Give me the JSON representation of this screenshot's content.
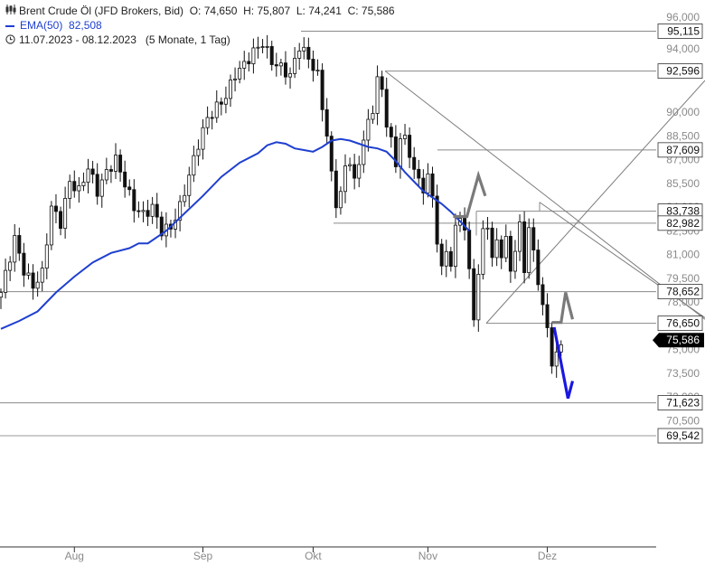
{
  "header": {
    "instrument": "Brent Crude Öl (JFD Brokers, Bid)",
    "ohlc": {
      "o_label": "O:",
      "o": "74,650",
      "h_label": "H:",
      "h": "75,807",
      "l_label": "L:",
      "l": "74,241",
      "c_label": "C:",
      "c": "75,586"
    },
    "ema_label": "EMA(50)",
    "ema_value": "82,508",
    "range": "11.07.2023 - 08.12.2023",
    "interval": "(5 Monate, 1 Tag)"
  },
  "colors": {
    "ema": "#1f3fcf",
    "candle": "#111111",
    "grid": "#bdbdbd",
    "projection_up": "#7a7a7a",
    "projection_down": "#1a18e0",
    "last_price_bg": "#000000"
  },
  "chart_data": {
    "type": "candlestick",
    "y_axis": {
      "ylim": [
        69.0,
        96.5
      ],
      "ticks": [
        "96,000",
        "94,000",
        "92,500",
        "90,000",
        "88,500",
        "87,000",
        "85,500",
        "84,000",
        "82,500",
        "81,000",
        "79,500",
        "78,000",
        "76,500",
        "75,000",
        "73,500",
        "72,000",
        "70,500"
      ],
      "tick_values": [
        96,
        94,
        92.5,
        90,
        88.5,
        87,
        85.5,
        84,
        82.5,
        81,
        79.5,
        78,
        76.5,
        75,
        73.5,
        72,
        70.5
      ]
    },
    "x_axis": {
      "labels": [
        "Aug",
        "Sep",
        "Okt",
        "Nov",
        "Dez"
      ],
      "label_bar_index": [
        16,
        44,
        68,
        93,
        119
      ]
    },
    "levels": [
      {
        "value": 95.115,
        "label": "95,115"
      },
      {
        "value": 92.596,
        "label": "92,596"
      },
      {
        "value": 87.609,
        "label": "87,609"
      },
      {
        "value": 83.738,
        "label": "83,738"
      },
      {
        "value": 82.982,
        "label": "82,982"
      },
      {
        "value": 78.652,
        "label": "78,652"
      },
      {
        "value": 76.65,
        "label": "76,650"
      },
      {
        "value": 71.623,
        "label": "71,623"
      },
      {
        "value": 69.542,
        "label": "69,542"
      }
    ],
    "last_price": {
      "value": 75.586,
      "label": "75,586"
    },
    "close_path": [
      [
        0,
        78.6
      ],
      [
        3,
        82
      ],
      [
        5,
        80
      ],
      [
        7,
        79
      ],
      [
        9,
        79.8
      ],
      [
        11,
        84
      ],
      [
        13,
        83
      ],
      [
        15,
        85.6
      ],
      [
        17,
        85
      ],
      [
        19,
        86.5
      ],
      [
        21,
        85
      ],
      [
        23,
        86.2
      ],
      [
        25,
        87
      ],
      [
        27,
        85.5
      ],
      [
        29,
        84
      ],
      [
        31,
        83.5
      ],
      [
        33,
        84
      ],
      [
        35,
        82.5
      ],
      [
        37,
        82.7
      ],
      [
        39,
        84
      ],
      [
        41,
        86
      ],
      [
        43,
        88
      ],
      [
        45,
        89.6
      ],
      [
        47,
        90.3
      ],
      [
        49,
        91
      ],
      [
        51,
        92.4
      ],
      [
        53,
        93
      ],
      [
        55,
        93.8
      ],
      [
        57,
        94.4
      ],
      [
        59,
        93.2
      ],
      [
        61,
        92.8
      ],
      [
        63,
        92.3
      ],
      [
        65,
        94.2
      ],
      [
        67,
        93.4
      ],
      [
        69,
        92.3
      ],
      [
        71,
        88.5
      ],
      [
        72,
        86
      ],
      [
        73,
        84.3
      ],
      [
        74,
        84.8
      ],
      [
        75,
        86.5
      ],
      [
        76,
        87
      ],
      [
        77,
        85.5
      ],
      [
        78,
        86.8
      ],
      [
        79,
        88.4
      ],
      [
        80,
        89.2
      ],
      [
        81,
        90.2
      ],
      [
        82,
        92.2
      ],
      [
        83,
        91.2
      ],
      [
        84,
        89.4
      ],
      [
        85,
        88.2
      ],
      [
        86,
        86.5
      ],
      [
        87,
        88.6
      ],
      [
        88,
        88.2
      ],
      [
        89,
        87.3
      ],
      [
        90,
        86.5
      ],
      [
        91,
        85.5
      ],
      [
        92,
        85.2
      ],
      [
        93,
        86
      ],
      [
        94,
        84.5
      ],
      [
        95,
        82
      ],
      [
        96,
        80
      ],
      [
        97,
        81.2
      ],
      [
        98,
        80.5
      ],
      [
        99,
        82.5
      ],
      [
        100,
        83.5
      ],
      [
        101,
        82.6
      ],
      [
        102,
        79.8
      ],
      [
        103,
        77.2
      ],
      [
        104,
        79.6
      ],
      [
        105,
        82.5
      ],
      [
        106,
        83
      ],
      [
        107,
        80.5
      ],
      [
        108,
        82
      ],
      [
        109,
        81
      ],
      [
        110,
        81.8
      ],
      [
        111,
        80.2
      ],
      [
        112,
        81.2
      ],
      [
        113,
        82.8
      ],
      [
        114,
        80.2
      ],
      [
        115,
        82.5
      ],
      [
        116,
        81.2
      ],
      [
        117,
        79.4
      ],
      [
        118,
        77.5
      ],
      [
        119,
        76.5
      ],
      [
        120,
        74.1
      ],
      [
        121,
        74.5
      ],
      [
        122,
        75.59
      ]
    ],
    "ema_path": [
      [
        0,
        76.3
      ],
      [
        4,
        76.8
      ],
      [
        8,
        77.4
      ],
      [
        12,
        78.6
      ],
      [
        16,
        79.6
      ],
      [
        20,
        80.5
      ],
      [
        24,
        81.1
      ],
      [
        28,
        81.4
      ],
      [
        30,
        81.7
      ],
      [
        32,
        81.7
      ],
      [
        36,
        82.5
      ],
      [
        40,
        83.6
      ],
      [
        44,
        84.7
      ],
      [
        48,
        85.9
      ],
      [
        52,
        86.8
      ],
      [
        56,
        87.4
      ],
      [
        58,
        87.9
      ],
      [
        60,
        88.1
      ],
      [
        62,
        88
      ],
      [
        64,
        87.7
      ],
      [
        66,
        87.6
      ],
      [
        68,
        87.5
      ],
      [
        70,
        87.8
      ],
      [
        72,
        88.2
      ],
      [
        74,
        88.3
      ],
      [
        76,
        88.2
      ],
      [
        78,
        88
      ],
      [
        80,
        87.8
      ],
      [
        82,
        87.7
      ],
      [
        84,
        87.5
      ],
      [
        86,
        86.9
      ],
      [
        88,
        86.2
      ],
      [
        90,
        85.6
      ],
      [
        92,
        85
      ],
      [
        94,
        84.6
      ],
      [
        96,
        84.2
      ],
      [
        98,
        83.7
      ],
      [
        100,
        83.1
      ],
      [
        102,
        82.5
      ]
    ],
    "projections": [
      {
        "name": "up-1",
        "color": "gray",
        "points": [
          [
            98.5,
            83.4
          ],
          [
            101.5,
            83.4
          ],
          [
            104,
            86
          ],
          [
            105.5,
            84.7
          ]
        ]
      },
      {
        "name": "up-2",
        "color": "gray",
        "points": [
          [
            120,
            76.7
          ],
          [
            122,
            76.7
          ],
          [
            123,
            78.6
          ],
          [
            124.5,
            76.9
          ]
        ]
      },
      {
        "name": "down",
        "color": "blue",
        "points": [
          [
            120.5,
            76.4
          ],
          [
            123.5,
            71.9
          ],
          [
            124.5,
            73.0
          ]
        ]
      }
    ]
  }
}
